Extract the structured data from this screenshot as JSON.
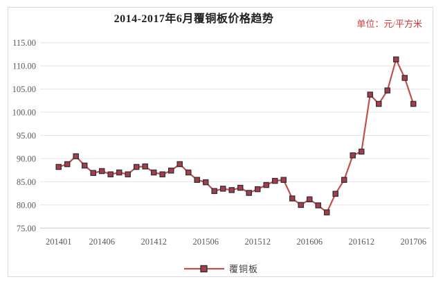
{
  "header": {
    "title": "2014-2017年6月覆铜板价格趋势",
    "unit_label": "单位：元/平方米"
  },
  "legend": {
    "series_label": "覆铜板"
  },
  "colors": {
    "line": "#c0504d",
    "marker_fill": "#a63d4a",
    "marker_stroke": "#332f38",
    "grid": "#e4e4e4",
    "axis": "#c6c6c6",
    "tick_text": "#595959",
    "title_text": "#1f1f1f",
    "unit_text": "#d03a3a"
  },
  "chart_data": {
    "type": "line",
    "title": "2014-2017年6月覆铜板价格趋势",
    "unit": "元/平方米",
    "xlabel": "",
    "ylabel": "",
    "ylim": [
      75,
      115
    ],
    "grid": true,
    "legend_position": "bottom",
    "marker": "square",
    "categories": [
      "201401",
      "201402",
      "201403",
      "201404",
      "201405",
      "201406",
      "201407",
      "201408",
      "201409",
      "201410",
      "201411",
      "201412",
      "201501",
      "201502",
      "201503",
      "201504",
      "201505",
      "201506",
      "201507",
      "201508",
      "201509",
      "201510",
      "201511",
      "201512",
      "201601",
      "201602",
      "201603",
      "201604",
      "201605",
      "201606",
      "201607",
      "201608",
      "201609",
      "201610",
      "201611",
      "201612",
      "201701",
      "201702",
      "201703",
      "201704",
      "201705",
      "201706"
    ],
    "x_tick_labels": [
      "201401",
      "201406",
      "201412",
      "201506",
      "201512",
      "201606",
      "201612",
      "201706"
    ],
    "y_ticks": [
      75,
      80,
      85,
      90,
      95,
      100,
      105,
      110,
      115
    ],
    "series": [
      {
        "name": "覆铜板",
        "values": [
          88.2,
          88.8,
          90.5,
          88.5,
          86.9,
          87.3,
          86.6,
          87.0,
          86.6,
          88.2,
          88.3,
          87.0,
          86.6,
          87.4,
          88.8,
          87.0,
          85.4,
          84.9,
          83.0,
          83.5,
          83.2,
          83.7,
          82.6,
          83.4,
          84.3,
          85.2,
          85.4,
          81.4,
          80.0,
          81.2,
          79.9,
          78.4,
          82.4,
          85.4,
          90.7,
          91.5,
          103.8,
          101.8,
          104.7,
          111.4,
          107.4,
          101.8
        ]
      }
    ]
  }
}
